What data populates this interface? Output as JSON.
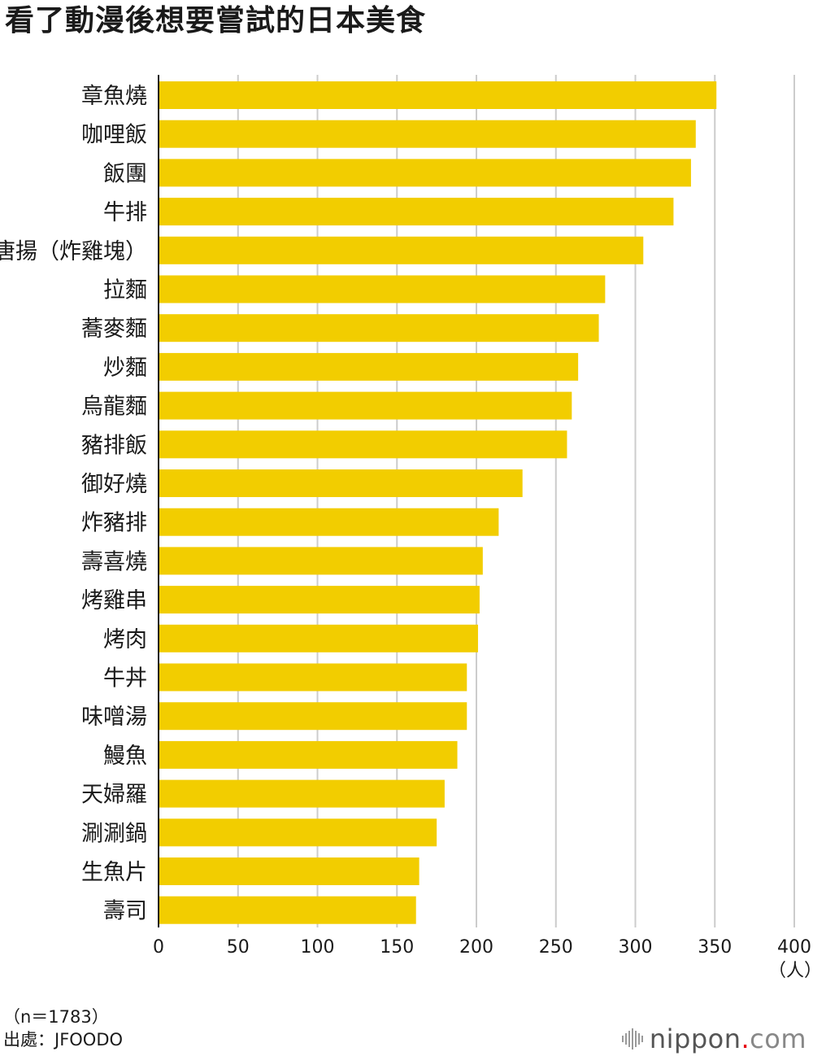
{
  "title": "看了動漫後想要嘗試的日本美食",
  "chart_data": {
    "type": "bar",
    "orientation": "horizontal",
    "title": "看了動漫後想要嘗試的日本美食",
    "categories": [
      "章魚燒",
      "咖哩飯",
      "飯團",
      "牛排",
      "唐揚（炸雞塊）",
      "拉麵",
      "蕎麥麵",
      "炒麵",
      "烏龍麵",
      "豬排飯",
      "御好燒",
      "炸豬排",
      "壽喜燒",
      "烤雞串",
      "烤肉",
      "牛丼",
      "味噌湯",
      "鰻魚",
      "天婦羅",
      "涮涮鍋",
      "生魚片",
      "壽司"
    ],
    "values": [
      351,
      338,
      335,
      324,
      305,
      281,
      277,
      264,
      260,
      257,
      229,
      214,
      204,
      202,
      201,
      194,
      194,
      188,
      180,
      175,
      164,
      162
    ],
    "xlim": [
      0,
      400
    ],
    "xticks": [
      0,
      50,
      100,
      150,
      200,
      250,
      300,
      350,
      400
    ],
    "xticks_labels": [
      "0",
      "50",
      "100",
      "150",
      "200",
      "250",
      "300",
      "350",
      "400"
    ],
    "unit": "（人）",
    "bar_color": "#f2cd00",
    "grid": true
  },
  "footnote": {
    "sample": "（n＝1783）",
    "source": "出處：JFOODO"
  },
  "logo": {
    "name": "nippon",
    "dot": ".",
    "tld": "com"
  }
}
